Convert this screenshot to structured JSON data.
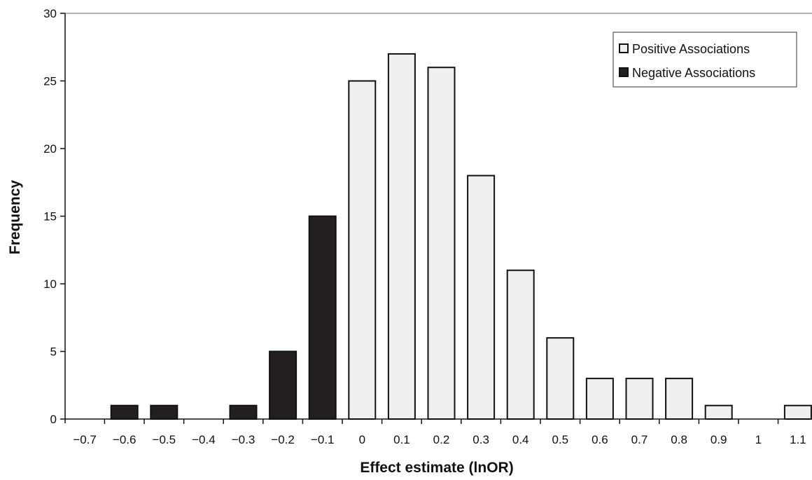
{
  "chart_data": {
    "type": "bar",
    "xlabel": "Effect estimate (lnOR)",
    "ylabel": "Frequency",
    "ylim": [
      0,
      30
    ],
    "yticks": [
      0,
      5,
      10,
      15,
      20,
      25,
      30
    ],
    "xlim": [
      -0.7,
      1.2
    ],
    "xticks": [
      "−0.7",
      "−0.6",
      "−0.5",
      "−0.4",
      "−0.3",
      "−0.2",
      "−0.1",
      "0",
      "0.1",
      "0.2",
      "0.3",
      "0.4",
      "0.5",
      "0.6",
      "0.7",
      "0.8",
      "0.9",
      "1",
      "1.1"
    ],
    "grid": false,
    "legend_position": "top-right",
    "series": [
      {
        "name": "Positive Associations",
        "color": "#efefef",
        "x": [
          0.05,
          0.15,
          0.25,
          0.35,
          0.45,
          0.55,
          0.65,
          0.75,
          0.85,
          0.95,
          1.15
        ],
        "values": [
          25,
          27,
          26,
          18,
          11,
          6,
          3,
          3,
          3,
          1,
          1
        ]
      },
      {
        "name": "Negative Associations",
        "color": "#231f20",
        "x": [
          -0.55,
          -0.45,
          -0.25,
          -0.15,
          -0.05
        ],
        "values": [
          1,
          1,
          1,
          5,
          15
        ]
      }
    ]
  }
}
